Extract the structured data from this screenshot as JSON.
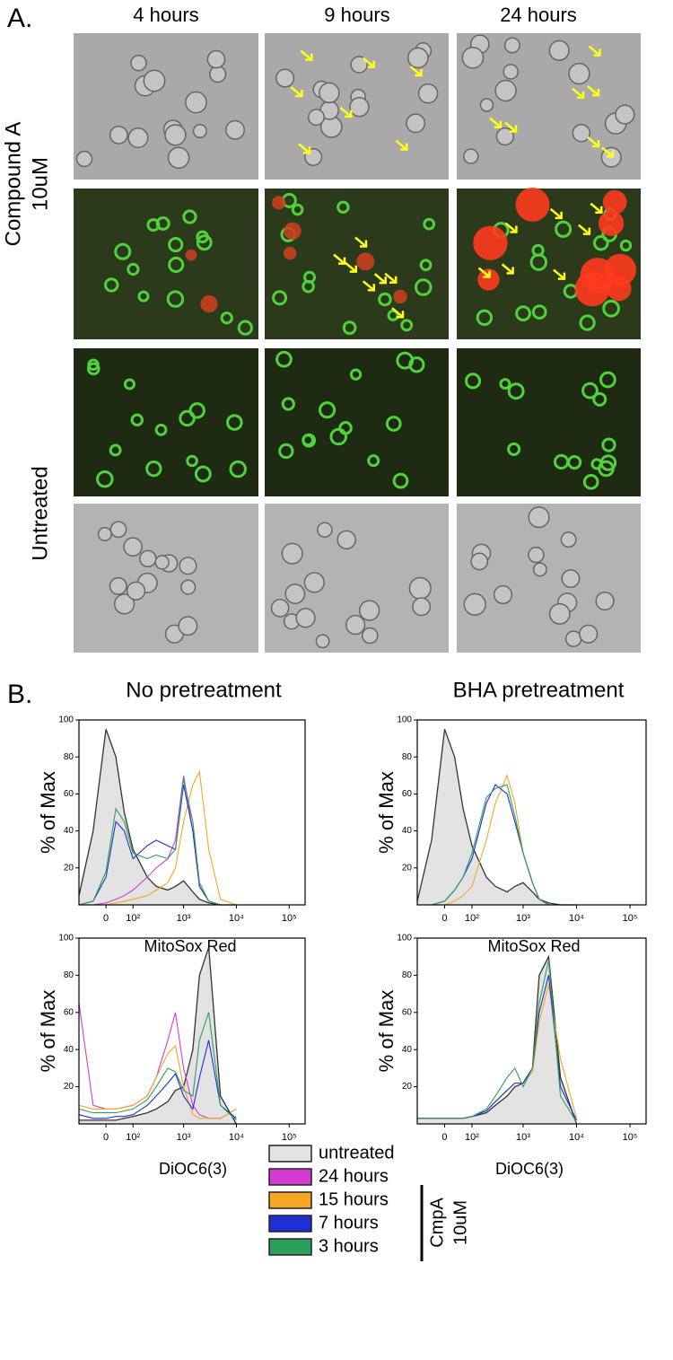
{
  "panel_a": {
    "label": "A.",
    "columns": [
      "4 hours",
      "9 hours",
      "24 hours"
    ],
    "row_groups": [
      {
        "lines": [
          "Compound A",
          "10uM"
        ]
      },
      {
        "lines": [
          "Untreated"
        ]
      }
    ]
  },
  "panel_b": {
    "label": "B."
  },
  "legend": {
    "group_lines": [
      "CmpA",
      "10uM"
    ]
  },
  "chart_data": [
    {
      "type": "line",
      "title": "No pretreatment",
      "x_label": "MitoSox Red",
      "y_label": "% of Max",
      "xscale": "asinh",
      "xlim": [
        -100,
        200000
      ],
      "ylim": [
        0,
        100
      ],
      "xticks": [
        0,
        {
          "value": 100,
          "label": "10²"
        },
        {
          "value": 1000,
          "label": "10³"
        },
        {
          "value": 10000,
          "label": "10⁴"
        },
        {
          "value": 100000,
          "label": "10⁵"
        }
      ],
      "yticks": [
        20,
        40,
        60,
        80,
        100
      ],
      "x": [
        -100,
        -40,
        0,
        30,
        60,
        100,
        200,
        300,
        500,
        700,
        1000,
        1500,
        2000,
        3000,
        5000,
        10000
      ],
      "series": [
        {
          "name": "untreated",
          "color": "#333333",
          "fill": "#e3e3e3",
          "values": [
            5,
            40,
            95,
            80,
            50,
            30,
            15,
            10,
            8,
            10,
            13,
            7,
            3,
            1,
            0,
            0
          ]
        },
        {
          "name": "24 hours",
          "color": "#d63bd1",
          "values": [
            0,
            0,
            1,
            3,
            5,
            8,
            15,
            20,
            25,
            35,
            70,
            40,
            10,
            2,
            0,
            0
          ]
        },
        {
          "name": "15 hours",
          "color": "#f5a623",
          "values": [
            0,
            0,
            0,
            1,
            2,
            3,
            5,
            8,
            12,
            20,
            45,
            65,
            72,
            30,
            3,
            0
          ]
        },
        {
          "name": "7 hours",
          "color": "#1f2fd6",
          "values": [
            0,
            2,
            15,
            45,
            40,
            25,
            32,
            35,
            32,
            30,
            65,
            40,
            10,
            2,
            0,
            0
          ]
        },
        {
          "name": "3 hours",
          "color": "#2ca05a",
          "values": [
            0,
            2,
            18,
            52,
            45,
            28,
            25,
            27,
            25,
            30,
            68,
            45,
            12,
            2,
            0,
            0
          ]
        }
      ]
    },
    {
      "type": "line",
      "title": "BHA pretreatment",
      "x_label": "MitoSox Red",
      "y_label": "% of Max",
      "xscale": "asinh",
      "xlim": [
        -100,
        200000
      ],
      "ylim": [
        0,
        100
      ],
      "xticks": [
        0,
        {
          "value": 100,
          "label": "10²"
        },
        {
          "value": 1000,
          "label": "10³"
        },
        {
          "value": 10000,
          "label": "10⁴"
        },
        {
          "value": 100000,
          "label": "10⁵"
        }
      ],
      "yticks": [
        20,
        40,
        60,
        80,
        100
      ],
      "x": [
        -100,
        -40,
        0,
        30,
        60,
        100,
        200,
        300,
        500,
        700,
        1000,
        1500,
        2000,
        3000,
        5000,
        10000
      ],
      "series": [
        {
          "name": "untreated",
          "color": "#333333",
          "fill": "#e3e3e3",
          "values": [
            2,
            35,
            95,
            80,
            52,
            32,
            15,
            10,
            7,
            10,
            12,
            7,
            3,
            1,
            0,
            0
          ]
        },
        {
          "name": "15 hours",
          "color": "#f5a623",
          "values": [
            0,
            0,
            0,
            2,
            5,
            10,
            35,
            55,
            70,
            55,
            28,
            12,
            3,
            0,
            0,
            0
          ]
        },
        {
          "name": "7 hours",
          "color": "#1f2fd6",
          "values": [
            0,
            0,
            2,
            8,
            15,
            25,
            55,
            65,
            60,
            45,
            28,
            12,
            3,
            0,
            0,
            0
          ]
        },
        {
          "name": "3 hours",
          "color": "#2ca05a",
          "values": [
            0,
            0,
            2,
            8,
            15,
            28,
            58,
            63,
            65,
            48,
            28,
            12,
            3,
            0,
            0,
            0
          ]
        }
      ]
    },
    {
      "type": "line",
      "x_label": "DiOC6(3)",
      "y_label": "% of Max",
      "xscale": "asinh",
      "xlim": [
        -100,
        200000
      ],
      "ylim": [
        0,
        100
      ],
      "xticks": [
        0,
        {
          "value": 100,
          "label": "10²"
        },
        {
          "value": 1000,
          "label": "10³"
        },
        {
          "value": 10000,
          "label": "10⁴"
        },
        {
          "value": 100000,
          "label": "10⁵"
        }
      ],
      "yticks": [
        20,
        40,
        60,
        80,
        100
      ],
      "x": [
        -100,
        -40,
        0,
        30,
        60,
        100,
        200,
        300,
        500,
        700,
        1000,
        1500,
        2000,
        3000,
        5000,
        10000
      ],
      "series": [
        {
          "name": "untreated",
          "color": "#333333",
          "fill": "#e3e3e3",
          "values": [
            2,
            2,
            2,
            2,
            3,
            4,
            6,
            8,
            12,
            18,
            20,
            40,
            80,
            95,
            15,
            0
          ]
        },
        {
          "name": "24 hours",
          "color": "#d63bd1",
          "values": [
            65,
            10,
            8,
            8,
            9,
            10,
            15,
            25,
            45,
            60,
            30,
            10,
            5,
            3,
            3,
            8
          ]
        },
        {
          "name": "15 hours",
          "color": "#f5a623",
          "values": [
            10,
            8,
            8,
            8,
            9,
            10,
            15,
            25,
            38,
            42,
            20,
            5,
            3,
            3,
            3,
            8
          ]
        },
        {
          "name": "7 hours",
          "color": "#1f2fd6",
          "values": [
            5,
            3,
            3,
            4,
            4,
            5,
            10,
            15,
            22,
            27,
            15,
            8,
            25,
            45,
            10,
            3
          ]
        },
        {
          "name": "3 hours",
          "color": "#2ca05a",
          "values": [
            8,
            6,
            6,
            6,
            7,
            8,
            13,
            20,
            30,
            28,
            18,
            15,
            45,
            60,
            10,
            2
          ]
        }
      ]
    },
    {
      "type": "line",
      "x_label": "DiOC6(3)",
      "y_label": "% of Max",
      "xscale": "asinh",
      "xlim": [
        -100,
        200000
      ],
      "ylim": [
        0,
        100
      ],
      "xticks": [
        0,
        {
          "value": 100,
          "label": "10²"
        },
        {
          "value": 1000,
          "label": "10³"
        },
        {
          "value": 10000,
          "label": "10⁴"
        },
        {
          "value": 100000,
          "label": "10⁵"
        }
      ],
      "yticks": [
        20,
        40,
        60,
        80,
        100
      ],
      "x": [
        -100,
        -40,
        0,
        30,
        60,
        100,
        200,
        300,
        500,
        700,
        1000,
        1500,
        2000,
        3000,
        5000,
        10000
      ],
      "series": [
        {
          "name": "untreated",
          "color": "#333333",
          "fill": "#e3e3e3",
          "values": [
            3,
            3,
            3,
            3,
            3,
            4,
            6,
            10,
            15,
            20,
            22,
            30,
            80,
            90,
            25,
            0
          ]
        },
        {
          "name": "15 hours",
          "color": "#f5a623",
          "values": [
            3,
            3,
            3,
            3,
            3,
            4,
            7,
            12,
            18,
            22,
            22,
            28,
            55,
            75,
            35,
            3
          ]
        },
        {
          "name": "7 hours",
          "color": "#1f2fd6",
          "values": [
            3,
            3,
            3,
            3,
            3,
            4,
            7,
            12,
            18,
            22,
            22,
            30,
            60,
            80,
            20,
            2
          ]
        },
        {
          "name": "3 hours",
          "color": "#2ca05a",
          "values": [
            3,
            3,
            3,
            3,
            3,
            4,
            8,
            15,
            25,
            30,
            20,
            30,
            65,
            88,
            15,
            1
          ]
        }
      ]
    }
  ]
}
